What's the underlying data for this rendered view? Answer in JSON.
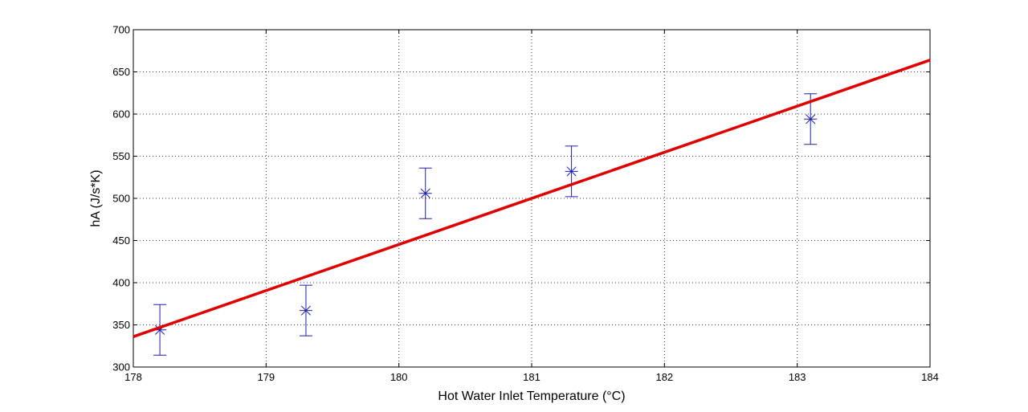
{
  "chart_data": {
    "type": "scatter",
    "title": "",
    "xlabel": "Hot Water Inlet Temperature (°C)",
    "ylabel": "hA (J/s*K)",
    "xlim": [
      178,
      184
    ],
    "ylim": [
      300,
      700
    ],
    "xticks": [
      178,
      179,
      180,
      181,
      182,
      183,
      184
    ],
    "yticks": [
      300,
      350,
      400,
      450,
      500,
      550,
      600,
      650,
      700
    ],
    "grid": true,
    "legend": "none",
    "series": [
      {
        "kind": "errorbar",
        "marker": "asterisk",
        "color": "#1f1fa8",
        "x": [
          178.2,
          179.3,
          180.2,
          181.3,
          183.1
        ],
        "y": [
          344,
          367,
          506,
          532,
          594
        ],
        "error": [
          30,
          30,
          30,
          30,
          30
        ]
      },
      {
        "kind": "line",
        "color": "#e00000",
        "x": [
          178,
          184
        ],
        "y": [
          336,
          664
        ]
      }
    ]
  }
}
